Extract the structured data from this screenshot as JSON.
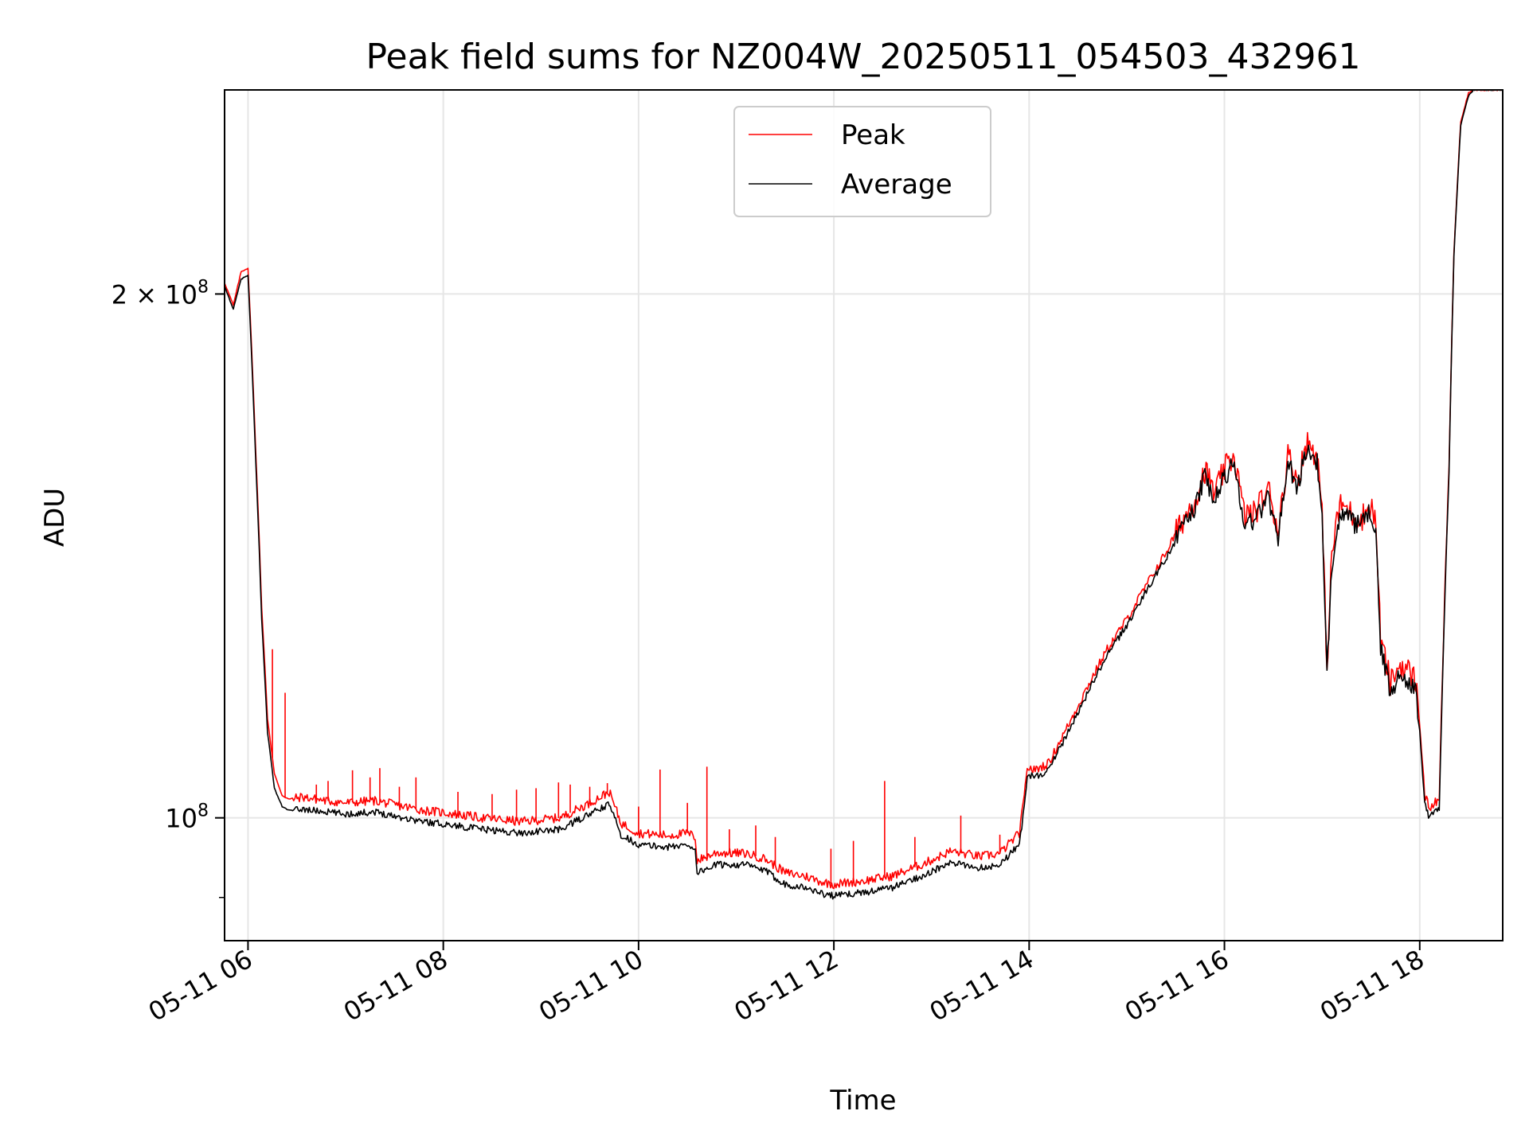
{
  "chart_data": {
    "type": "line",
    "title": "Peak field sums for NZ004W_20250511_054503_432961",
    "xlabel": "Time",
    "ylabel": "ADU",
    "yscale": "log",
    "x_unit": "hours since 2025-05-11 00:00",
    "xlim": [
      5.76,
      18.85
    ],
    "ylim": [
      85000000,
      262000000
    ],
    "grid": true,
    "legend_position": "upper center",
    "x_ticks": [
      {
        "value": 6,
        "label": "05-11 06"
      },
      {
        "value": 8,
        "label": "05-11 08"
      },
      {
        "value": 10,
        "label": "05-11 10"
      },
      {
        "value": 12,
        "label": "05-11 12"
      },
      {
        "value": 14,
        "label": "05-11 14"
      },
      {
        "value": 16,
        "label": "05-11 16"
      },
      {
        "value": 18,
        "label": "05-11 18"
      }
    ],
    "y_ticks": [
      {
        "value": 100000000,
        "base": "10",
        "exponent": "8",
        "coef": ""
      },
      {
        "value": 200000000,
        "base": "10",
        "exponent": "8",
        "coef": "2 × "
      }
    ],
    "series": [
      {
        "name": "Average",
        "color": "#000000",
        "x": [
          5.76,
          5.85,
          5.93,
          6.0,
          6.08,
          6.14,
          6.2,
          6.27,
          6.35,
          6.42,
          6.48,
          6.55,
          6.65,
          6.8,
          7.0,
          7.3,
          7.6,
          7.8,
          8.0,
          8.4,
          8.8,
          9.2,
          9.5,
          9.7,
          9.82,
          10.0,
          10.3,
          10.5,
          10.58,
          10.6,
          10.8,
          11.1,
          11.3,
          11.5,
          11.7,
          11.9,
          12.0,
          12.3,
          12.6,
          12.9,
          13.2,
          13.5,
          13.7,
          13.9,
          13.95,
          13.98,
          14.05,
          14.2,
          14.4,
          14.6,
          14.8,
          15.0,
          15.2,
          15.4,
          15.55,
          15.7,
          15.8,
          15.9,
          16.0,
          16.1,
          16.2,
          16.3,
          16.45,
          16.55,
          16.65,
          16.75,
          16.85,
          16.95,
          17.0,
          17.05,
          17.1,
          17.15,
          17.2,
          17.3,
          17.4,
          17.5,
          17.55,
          17.6,
          17.7,
          17.8,
          17.95,
          18.0,
          18.05,
          18.1,
          18.15,
          18.2,
          18.3,
          18.35,
          18.42,
          18.5,
          18.55,
          18.65,
          18.85
        ],
        "values": [
          202000000,
          196000000,
          204000000,
          205000000,
          160000000,
          130000000,
          112000000,
          104000000,
          101500000,
          101000000,
          101000000,
          101200000,
          101000000,
          100800000,
          100500000,
          100800000,
          100000000,
          99500000,
          99200000,
          98500000,
          98000000,
          98500000,
          100500000,
          101800000,
          97800000,
          96500000,
          96200000,
          96500000,
          96000000,
          93000000,
          94000000,
          94000000,
          93200000,
          91600000,
          91200000,
          90400000,
          90200000,
          90600000,
          91200000,
          92600000,
          94200000,
          93600000,
          94000000,
          96600000,
          101300000,
          106000000,
          105500000,
          106500000,
          112000000,
          118000000,
          124000000,
          129000000,
          135000000,
          141000000,
          146000000,
          151000000,
          157000000,
          152000000,
          157000000,
          160000000,
          148000000,
          148000000,
          153000000,
          145000000,
          160000000,
          155000000,
          163000000,
          160000000,
          148000000,
          120000000,
          140000000,
          147000000,
          150000000,
          148000000,
          147000000,
          150000000,
          146000000,
          125000000,
          118000000,
          121000000,
          119000000,
          112000000,
          102000000,
          100000000,
          100800000,
          101000000,
          158000000,
          210000000,
          250000000,
          260000000,
          262000000,
          262000000,
          262000000
        ]
      },
      {
        "name": "Peak",
        "color": "#ff0000",
        "x": [
          5.76,
          5.85,
          5.93,
          6.0,
          6.08,
          6.14,
          6.2,
          6.27,
          6.35,
          6.42,
          6.48,
          6.55,
          6.65,
          6.8,
          7.0,
          7.3,
          7.6,
          7.8,
          8.0,
          8.4,
          8.8,
          9.2,
          9.5,
          9.7,
          9.82,
          10.0,
          10.3,
          10.5,
          10.58,
          10.6,
          10.8,
          11.1,
          11.3,
          11.5,
          11.7,
          11.9,
          12.0,
          12.3,
          12.6,
          12.9,
          13.2,
          13.5,
          13.7,
          13.9,
          13.95,
          13.98,
          14.05,
          14.2,
          14.4,
          14.6,
          14.8,
          15.0,
          15.2,
          15.4,
          15.55,
          15.7,
          15.8,
          15.9,
          16.0,
          16.1,
          16.2,
          16.3,
          16.45,
          16.55,
          16.65,
          16.75,
          16.85,
          16.95,
          17.0,
          17.05,
          17.1,
          17.15,
          17.2,
          17.3,
          17.4,
          17.5,
          17.55,
          17.6,
          17.7,
          17.8,
          17.95,
          18.0,
          18.05,
          18.1,
          18.15,
          18.2,
          18.3,
          18.35,
          18.42,
          18.5,
          18.55,
          18.65,
          18.85
        ],
        "values": [
          203000000,
          197000000,
          206000000,
          207000000,
          162000000,
          132000000,
          114000000,
          106000000,
          103000000,
          102500000,
          102600000,
          102800000,
          102600000,
          102300000,
          102000000,
          102300000,
          101500000,
          101000000,
          100700000,
          100000000,
          99500000,
          100000000,
          102000000,
          103500000,
          99300000,
          98000000,
          97700000,
          98000000,
          97500000,
          94500000,
          95500000,
          95400000,
          94700000,
          93000000,
          92600000,
          91800000,
          91600000,
          92000000,
          92600000,
          94000000,
          95700000,
          95000000,
          95400000,
          98000000,
          102700000,
          107000000,
          106500000,
          107500000,
          113000000,
          119000000,
          125000000,
          130000000,
          136000000,
          142000000,
          147500000,
          152500000,
          158500000,
          153500000,
          158500000,
          161500000,
          149500000,
          149500000,
          154500000,
          146500000,
          161500000,
          156500000,
          164500000,
          161500000,
          149500000,
          121500000,
          141500000,
          148500000,
          151500000,
          149500000,
          148500000,
          151500000,
          147500000,
          126500000,
          119500000,
          122500000,
          120500000,
          113500000,
          103200000,
          101200000,
          102000000,
          102200000,
          159000000,
          211000000,
          251000000,
          261000000,
          262000000,
          262000000,
          262000000
        ]
      }
    ],
    "spikes": [
      {
        "x": 6.25,
        "value": 125000000
      },
      {
        "x": 6.38,
        "value": 118000000
      },
      {
        "x": 6.7,
        "value": 104500000
      },
      {
        "x": 6.82,
        "value": 105000000
      },
      {
        "x": 7.07,
        "value": 106500000
      },
      {
        "x": 7.25,
        "value": 105500000
      },
      {
        "x": 7.35,
        "value": 106800000
      },
      {
        "x": 7.55,
        "value": 104200000
      },
      {
        "x": 7.72,
        "value": 105500000
      },
      {
        "x": 8.15,
        "value": 103500000
      },
      {
        "x": 8.5,
        "value": 103200000
      },
      {
        "x": 8.75,
        "value": 103800000
      },
      {
        "x": 8.95,
        "value": 104000000
      },
      {
        "x": 9.18,
        "value": 104800000
      },
      {
        "x": 9.3,
        "value": 104500000
      },
      {
        "x": 9.5,
        "value": 104200000
      },
      {
        "x": 9.68,
        "value": 104700000
      },
      {
        "x": 10.0,
        "value": 101500000
      },
      {
        "x": 10.22,
        "value": 106600000
      },
      {
        "x": 10.5,
        "value": 102000000
      },
      {
        "x": 10.7,
        "value": 107000000
      },
      {
        "x": 10.93,
        "value": 98500000
      },
      {
        "x": 11.2,
        "value": 99000000
      },
      {
        "x": 11.4,
        "value": 97500000
      },
      {
        "x": 11.97,
        "value": 96000000
      },
      {
        "x": 12.2,
        "value": 97000000
      },
      {
        "x": 12.52,
        "value": 105000000
      },
      {
        "x": 12.83,
        "value": 97500000
      },
      {
        "x": 13.3,
        "value": 100300000
      },
      {
        "x": 13.7,
        "value": 97800000
      }
    ]
  }
}
